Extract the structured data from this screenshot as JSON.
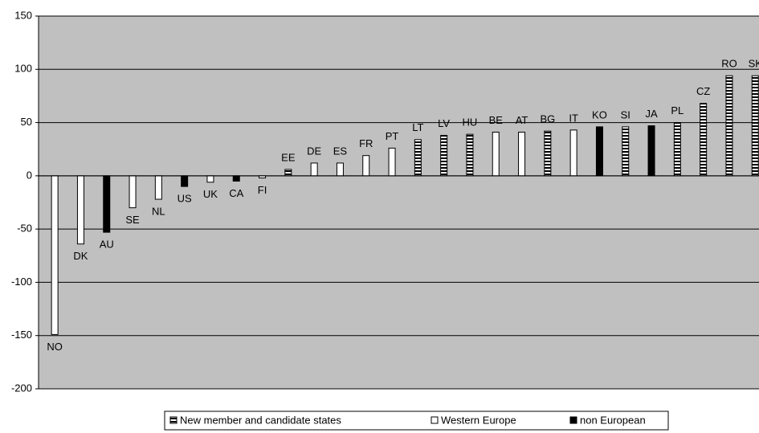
{
  "chart_data": {
    "type": "bar",
    "categories": [
      "NO",
      "DK",
      "AU",
      "SE",
      "NL",
      "US",
      "UK",
      "CA",
      "FI",
      "EE",
      "DE",
      "ES",
      "FR",
      "PT",
      "LT",
      "LV",
      "HU",
      "BE",
      "AT",
      "BG",
      "IT",
      "KO",
      "SI",
      "JA",
      "PL",
      "CZ",
      "RO",
      "SK"
    ],
    "series": [
      {
        "name": "New member and candidate states",
        "color": "#000000",
        "pattern": "stripes",
        "values": [
          null,
          null,
          null,
          null,
          null,
          null,
          null,
          null,
          null,
          6,
          null,
          null,
          null,
          null,
          34,
          38,
          39,
          null,
          null,
          42,
          null,
          null,
          46,
          null,
          50,
          68,
          94,
          94
        ]
      },
      {
        "name": "Western Europe",
        "color": "#ffffff",
        "values": [
          -149,
          -64,
          null,
          -30,
          -22,
          null,
          -6,
          null,
          -2,
          null,
          12,
          12,
          19,
          26,
          null,
          null,
          null,
          41,
          41,
          null,
          43,
          null,
          null,
          null,
          null,
          null,
          null,
          null
        ]
      },
      {
        "name": "non European",
        "color": "#000000",
        "values": [
          null,
          null,
          -53,
          null,
          null,
          -10,
          null,
          -5,
          null,
          null,
          null,
          null,
          null,
          null,
          null,
          null,
          null,
          null,
          null,
          null,
          null,
          46,
          null,
          47,
          null,
          null,
          null,
          null
        ]
      }
    ],
    "ylim": [
      -200,
      150
    ],
    "yticks": [
      -200,
      -150,
      -100,
      -50,
      0,
      50,
      100,
      150
    ],
    "grid": true,
    "legend": "bottom"
  }
}
